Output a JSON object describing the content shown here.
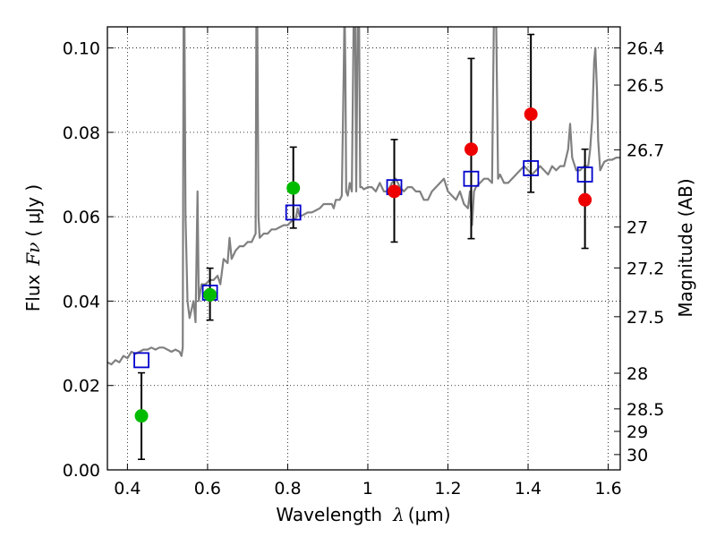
{
  "chart_data": {
    "type": "scatter",
    "title": "",
    "xlabel": {
      "prefix": "Wavelength",
      "symbol": "λ",
      "unit": "(μm)"
    },
    "ylabel": {
      "prefix": "Flux",
      "symbol": "Fν",
      "unit": "( μJy )"
    },
    "ylabel_right": "Magnitude (AB)",
    "xlim": [
      0.35,
      1.63
    ],
    "ylim": [
      0.0,
      0.105
    ],
    "grid": true,
    "x_ticks": [
      {
        "value": 0.4,
        "label": "0.4"
      },
      {
        "value": 0.6,
        "label": "0.6"
      },
      {
        "value": 0.8,
        "label": "0.8"
      },
      {
        "value": 1.0,
        "label": "1"
      },
      {
        "value": 1.2,
        "label": "1.2"
      },
      {
        "value": 1.4,
        "label": "1.4"
      },
      {
        "value": 1.6,
        "label": "1.6"
      }
    ],
    "y_ticks": [
      {
        "value": 0.0,
        "label": "0.00"
      },
      {
        "value": 0.02,
        "label": "0.02"
      },
      {
        "value": 0.04,
        "label": "0.04"
      },
      {
        "value": 0.06,
        "label": "0.06"
      },
      {
        "value": 0.08,
        "label": "0.08"
      },
      {
        "value": 0.1,
        "label": "0.10"
      }
    ],
    "right_ticks": [
      {
        "mag": 26.4,
        "label": "26.4"
      },
      {
        "mag": 26.5,
        "label": "26.5"
      },
      {
        "mag": 26.7,
        "label": "26.7"
      },
      {
        "mag": 27.0,
        "label": "27"
      },
      {
        "mag": 27.2,
        "label": "27.2"
      },
      {
        "mag": 27.5,
        "label": "27.5"
      },
      {
        "mag": 28.0,
        "label": "28"
      },
      {
        "mag": 28.5,
        "label": "28.5"
      },
      {
        "mag": 29.0,
        "label": "29"
      },
      {
        "mag": 30.0,
        "label": "30"
      }
    ],
    "model_spectrum": {
      "color": "#808080",
      "points": [
        [
          0.35,
          0.0255
        ],
        [
          0.36,
          0.025
        ],
        [
          0.37,
          0.026
        ],
        [
          0.38,
          0.0255
        ],
        [
          0.39,
          0.027
        ],
        [
          0.4,
          0.0265
        ],
        [
          0.41,
          0.028
        ],
        [
          0.42,
          0.0275
        ],
        [
          0.43,
          0.028
        ],
        [
          0.44,
          0.0285
        ],
        [
          0.45,
          0.0285
        ],
        [
          0.46,
          0.029
        ],
        [
          0.47,
          0.0285
        ],
        [
          0.48,
          0.029
        ],
        [
          0.49,
          0.029
        ],
        [
          0.5,
          0.0285
        ],
        [
          0.51,
          0.028
        ],
        [
          0.52,
          0.0285
        ],
        [
          0.53,
          0.028
        ],
        [
          0.535,
          0.027
        ],
        [
          0.538,
          0.029
        ],
        [
          0.54,
          0.105
        ],
        [
          0.542,
          0.11
        ],
        [
          0.545,
          0.06
        ],
        [
          0.55,
          0.04
        ],
        [
          0.555,
          0.036
        ],
        [
          0.56,
          0.038
        ],
        [
          0.565,
          0.04
        ],
        [
          0.57,
          0.035
        ],
        [
          0.575,
          0.066
        ],
        [
          0.578,
          0.04
        ],
        [
          0.585,
          0.044
        ],
        [
          0.595,
          0.044
        ],
        [
          0.605,
          0.045
        ],
        [
          0.615,
          0.045
        ],
        [
          0.625,
          0.046
        ],
        [
          0.632,
          0.044
        ],
        [
          0.64,
          0.05
        ],
        [
          0.65,
          0.049
        ],
        [
          0.655,
          0.055
        ],
        [
          0.66,
          0.05
        ],
        [
          0.67,
          0.052
        ],
        [
          0.68,
          0.053
        ],
        [
          0.69,
          0.053
        ],
        [
          0.7,
          0.054
        ],
        [
          0.71,
          0.054
        ],
        [
          0.715,
          0.055
        ],
        [
          0.72,
          0.056
        ],
        [
          0.722,
          0.11
        ],
        [
          0.724,
          0.11
        ],
        [
          0.727,
          0.06
        ],
        [
          0.73,
          0.055
        ],
        [
          0.74,
          0.056
        ],
        [
          0.75,
          0.056
        ],
        [
          0.76,
          0.057
        ],
        [
          0.77,
          0.057
        ],
        [
          0.78,
          0.0575
        ],
        [
          0.79,
          0.058
        ],
        [
          0.8,
          0.058
        ],
        [
          0.81,
          0.059
        ],
        [
          0.82,
          0.0595
        ],
        [
          0.825,
          0.062
        ],
        [
          0.83,
          0.06
        ],
        [
          0.84,
          0.0605
        ],
        [
          0.85,
          0.061
        ],
        [
          0.86,
          0.061
        ],
        [
          0.87,
          0.0615
        ],
        [
          0.88,
          0.062
        ],
        [
          0.89,
          0.063
        ],
        [
          0.9,
          0.063
        ],
        [
          0.91,
          0.063
        ],
        [
          0.915,
          0.062
        ],
        [
          0.92,
          0.064
        ],
        [
          0.93,
          0.064
        ],
        [
          0.935,
          0.065
        ],
        [
          0.94,
          0.095
        ],
        [
          0.942,
          0.11
        ],
        [
          0.944,
          0.095
        ],
        [
          0.946,
          0.066
        ],
        [
          0.95,
          0.065
        ],
        [
          0.955,
          0.068
        ],
        [
          0.96,
          0.066
        ],
        [
          0.965,
          0.11
        ],
        [
          0.968,
          0.11
        ],
        [
          0.971,
          0.066
        ],
        [
          0.975,
          0.11
        ],
        [
          0.978,
          0.11
        ],
        [
          0.981,
          0.067
        ],
        [
          0.985,
          0.067
        ],
        [
          0.99,
          0.0665
        ],
        [
          1.0,
          0.067
        ],
        [
          1.01,
          0.067
        ],
        [
          1.02,
          0.066
        ],
        [
          1.03,
          0.068
        ],
        [
          1.04,
          0.066
        ],
        [
          1.05,
          0.066
        ],
        [
          1.06,
          0.068
        ],
        [
          1.07,
          0.069
        ],
        [
          1.08,
          0.067
        ],
        [
          1.09,
          0.066
        ],
        [
          1.1,
          0.067
        ],
        [
          1.11,
          0.067
        ],
        [
          1.12,
          0.066
        ],
        [
          1.13,
          0.066
        ],
        [
          1.14,
          0.064
        ],
        [
          1.15,
          0.064
        ],
        [
          1.16,
          0.066
        ],
        [
          1.17,
          0.067
        ],
        [
          1.18,
          0.068
        ],
        [
          1.19,
          0.069
        ],
        [
          1.2,
          0.066
        ],
        [
          1.21,
          0.065
        ],
        [
          1.22,
          0.064
        ],
        [
          1.23,
          0.066
        ],
        [
          1.24,
          0.063
        ],
        [
          1.25,
          0.062
        ],
        [
          1.255,
          0.066
        ],
        [
          1.26,
          0.058
        ],
        [
          1.265,
          0.066
        ],
        [
          1.27,
          0.067
        ],
        [
          1.28,
          0.068
        ],
        [
          1.29,
          0.069
        ],
        [
          1.3,
          0.069
        ],
        [
          1.31,
          0.068
        ],
        [
          1.315,
          0.11
        ],
        [
          1.32,
          0.11
        ],
        [
          1.325,
          0.069
        ],
        [
          1.33,
          0.07
        ],
        [
          1.34,
          0.068
        ],
        [
          1.35,
          0.068
        ],
        [
          1.36,
          0.069
        ],
        [
          1.37,
          0.07
        ],
        [
          1.38,
          0.071
        ],
        [
          1.39,
          0.072
        ],
        [
          1.4,
          0.071
        ],
        [
          1.41,
          0.07
        ],
        [
          1.42,
          0.071
        ],
        [
          1.43,
          0.072
        ],
        [
          1.44,
          0.071
        ],
        [
          1.45,
          0.07
        ],
        [
          1.46,
          0.072
        ],
        [
          1.47,
          0.071
        ],
        [
          1.48,
          0.072
        ],
        [
          1.49,
          0.072
        ],
        [
          1.5,
          0.076
        ],
        [
          1.505,
          0.082
        ],
        [
          1.51,
          0.074
        ],
        [
          1.52,
          0.071
        ],
        [
          1.53,
          0.071
        ],
        [
          1.54,
          0.072
        ],
        [
          1.55,
          0.072
        ],
        [
          1.555,
          0.076
        ],
        [
          1.56,
          0.083
        ],
        [
          1.565,
          0.097
        ],
        [
          1.568,
          0.1
        ],
        [
          1.572,
          0.09
        ],
        [
          1.575,
          0.078
        ],
        [
          1.58,
          0.071
        ],
        [
          1.59,
          0.073
        ],
        [
          1.6,
          0.0735
        ],
        [
          1.61,
          0.0735
        ],
        [
          1.62,
          0.074
        ],
        [
          1.63,
          0.074
        ]
      ]
    },
    "model_photometry": {
      "color": "#0000cc",
      "marker": "open-square",
      "points": [
        {
          "x": 0.435,
          "y": 0.026
        },
        {
          "x": 0.606,
          "y": 0.042
        },
        {
          "x": 0.814,
          "y": 0.061
        },
        {
          "x": 1.066,
          "y": 0.067
        },
        {
          "x": 1.258,
          "y": 0.069
        },
        {
          "x": 1.407,
          "y": 0.0715
        },
        {
          "x": 1.542,
          "y": 0.07
        }
      ]
    },
    "observed": {
      "points": [
        {
          "x": 0.435,
          "y": 0.0128,
          "err_low": 0.0025,
          "err_high": 0.023,
          "color": "#00bb00"
        },
        {
          "x": 0.606,
          "y": 0.0415,
          "err_low": 0.0355,
          "err_high": 0.0478,
          "color": "#00bb00"
        },
        {
          "x": 0.814,
          "y": 0.0668,
          "err_low": 0.0573,
          "err_high": 0.0765,
          "color": "#00bb00"
        },
        {
          "x": 1.066,
          "y": 0.066,
          "err_low": 0.054,
          "err_high": 0.0783,
          "color": "#ee0000"
        },
        {
          "x": 1.258,
          "y": 0.076,
          "err_low": 0.0548,
          "err_high": 0.0975,
          "color": "#ee0000"
        },
        {
          "x": 1.407,
          "y": 0.0843,
          "err_low": 0.0658,
          "err_high": 0.1032,
          "color": "#ee0000"
        },
        {
          "x": 1.542,
          "y": 0.064,
          "err_low": 0.0525,
          "err_high": 0.076,
          "color": "#ee0000"
        }
      ]
    }
  }
}
